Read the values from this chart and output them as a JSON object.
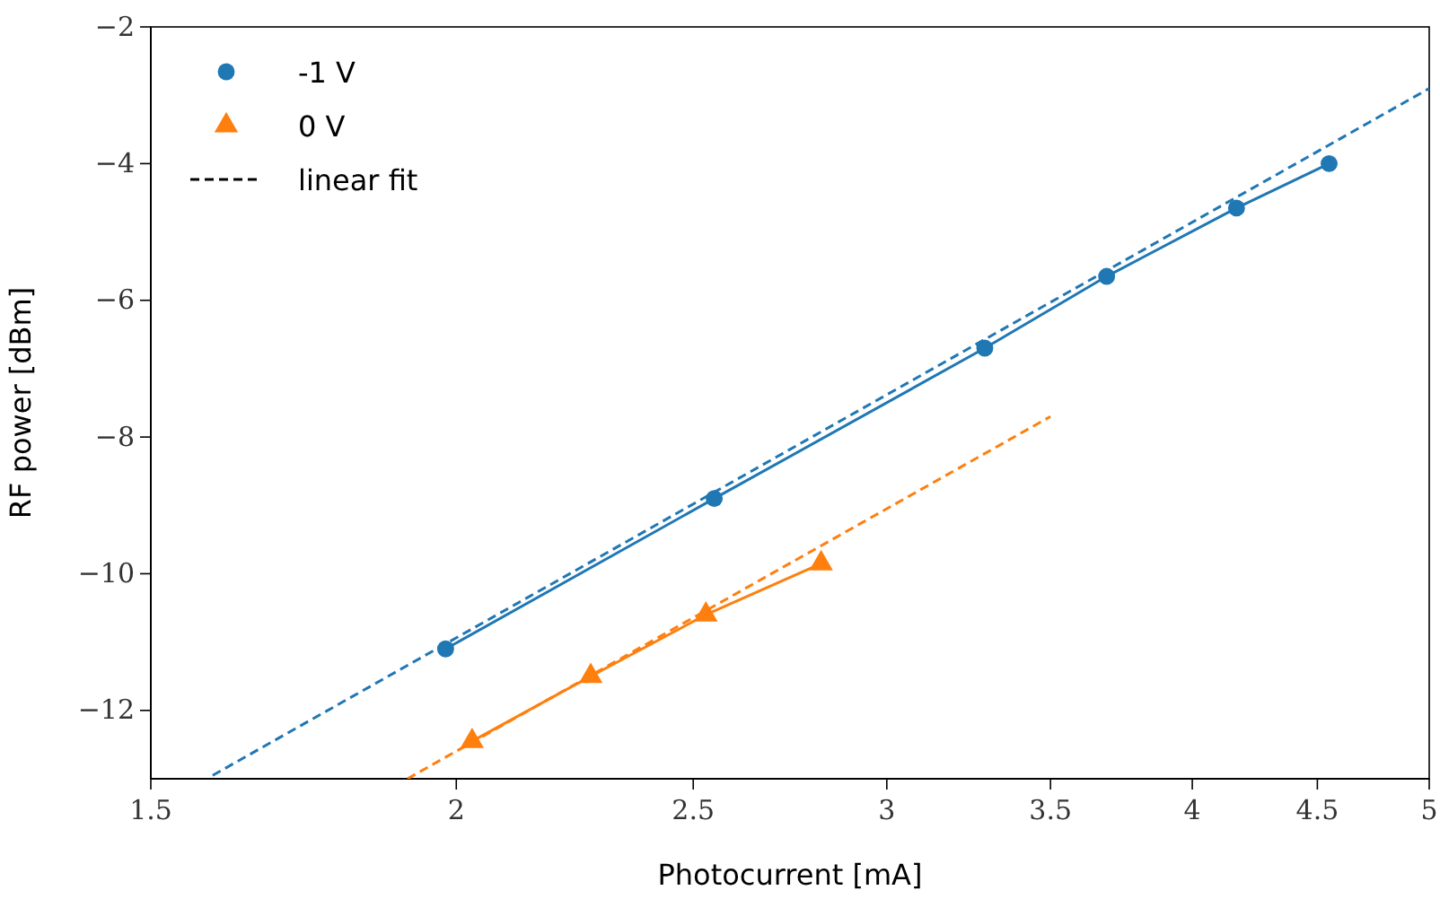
{
  "chart_data": {
    "type": "line",
    "xlabel": "Photocurrent [mA]",
    "ylabel": "RF power [dBm]",
    "log": "x",
    "xlim": [
      1.5,
      5
    ],
    "xticks": [
      1.5,
      2,
      2.5,
      3,
      3.5,
      4,
      4.5,
      5
    ],
    "ylim": [
      -13,
      -2
    ],
    "yticks": [
      {
        "value": -12,
        "label": "−12"
      },
      {
        "value": -10,
        "label": "−10"
      },
      {
        "value": -8,
        "label": "−8"
      },
      {
        "value": -6,
        "label": "−6"
      },
      {
        "value": -4,
        "label": "−4"
      },
      {
        "value": -2,
        "label": "−2"
      }
    ],
    "grid": false,
    "legend": "top left",
    "series": [
      {
        "name": "-1 V",
        "color": "#1f77b4",
        "marker": "circle",
        "line_style": "solid",
        "x": [
          1.98,
          2.55,
          3.29,
          3.69,
          4.17,
          4.55
        ],
        "values": [
          -11.1,
          -8.9,
          -6.7,
          -5.65,
          -4.65,
          -4.0
        ]
      },
      {
        "name": "0 V",
        "color": "#ff7f0e",
        "marker": "triangle",
        "line_style": "solid",
        "x": [
          2.03,
          2.27,
          2.53,
          2.82
        ],
        "values": [
          -12.45,
          -11.5,
          -10.6,
          -9.85
        ]
      },
      {
        "color": "#1f77b4",
        "marker": "none",
        "line_style": "dashed",
        "x": [
          1.59,
          5
        ],
        "values": [
          -12.95,
          -2.9
        ]
      },
      {
        "color": "#ff7f0e",
        "marker": "none",
        "line_style": "dashed",
        "x": [
          1.91,
          3.5
        ],
        "values": [
          -13,
          -7.7
        ]
      },
      {
        "name": "linear fit",
        "color": "#000000",
        "marker": "none",
        "line_style": "dashed"
      }
    ]
  }
}
